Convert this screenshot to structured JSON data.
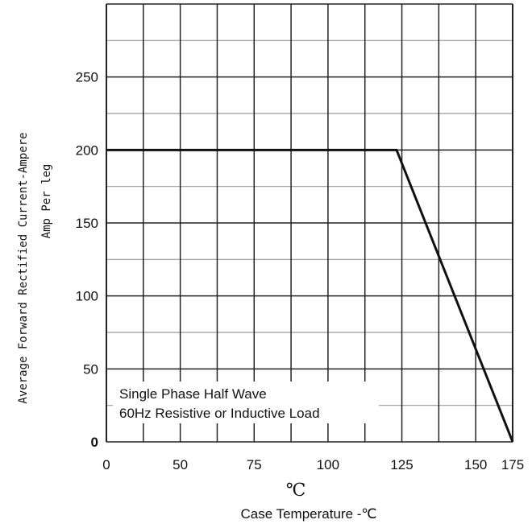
{
  "chart_data": {
    "type": "line",
    "title": "",
    "xlabel": "Case Temperature  -℃",
    "xunit": "℃",
    "ylabel_line1": "Average Forward Rectified Current-Ampere",
    "ylabel_line2": "Amp   Per leg",
    "x_tick_labels": [
      "0",
      "50",
      "75",
      "100",
      "125",
      "150",
      "175"
    ],
    "y_tick_labels": [
      "0",
      "50",
      "100",
      "150",
      "200",
      "250"
    ],
    "y_ticks": [
      0,
      50,
      100,
      150,
      200,
      250
    ],
    "xlim": [
      0,
      175
    ],
    "ylim": [
      0,
      300
    ],
    "grid": true,
    "annotation_lines": [
      "Single  Phase  Half  Wave",
      "60Hz  Resistive   or Inductive Load"
    ],
    "series": [
      {
        "x": [
          0,
          125,
          175
        ],
        "y": [
          200,
          200,
          0
        ]
      }
    ]
  }
}
